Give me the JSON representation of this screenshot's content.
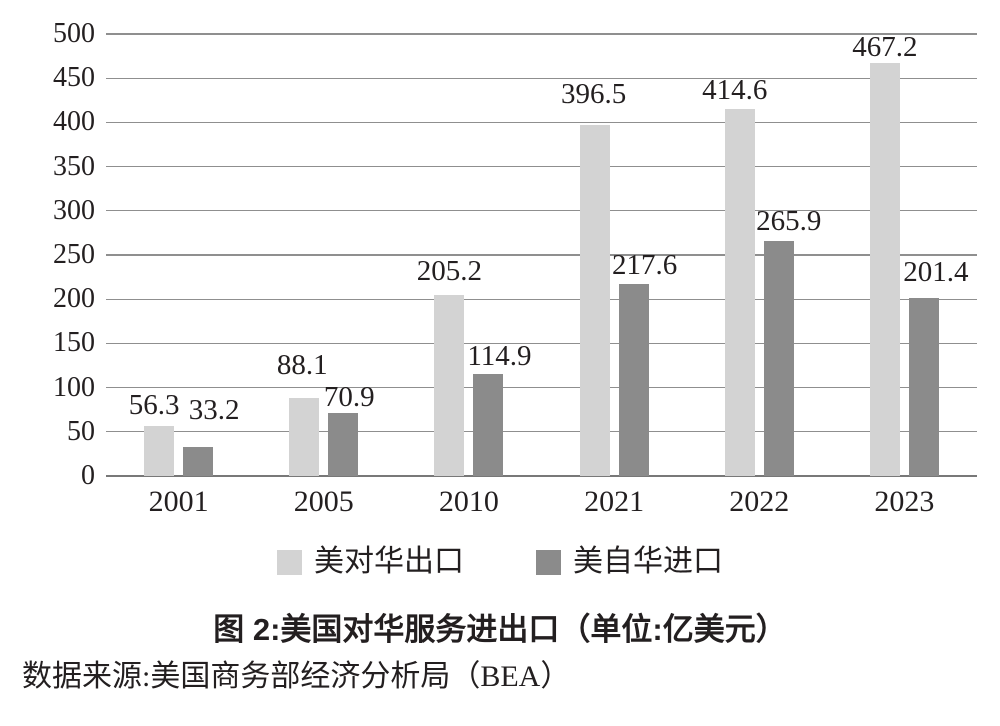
{
  "colors": {
    "background": "#ffffff",
    "export_bar": "#d3d3d3",
    "import_bar": "#8b8b8b",
    "gridline": "#8f8f8f",
    "axis_baseline": "#787878",
    "text": "#231f20"
  },
  "chart_data": {
    "type": "bar",
    "categories": [
      "2001",
      "2005",
      "2010",
      "2021",
      "2022",
      "2023"
    ],
    "series": [
      {
        "name": "美对华出口",
        "color": "#d3d3d3",
        "values": [
          56.3,
          88.1,
          205.2,
          396.5,
          414.6,
          467.2
        ]
      },
      {
        "name": "美自华进口",
        "color": "#8b8b8b",
        "values": [
          33.2,
          70.9,
          114.9,
          217.6,
          265.9,
          201.4
        ]
      }
    ],
    "ylim": [
      0,
      500
    ],
    "ytick_step": 50,
    "grid": true,
    "legend_position": "bottom",
    "xlabel": "",
    "ylabel": "",
    "title": "图 2:美国对华服务进出口（单位:亿美元）",
    "source": "数据来源:美国商务部经济分析局（BEA）",
    "label_offsets": {
      "exports": {
        "gap": [
          6,
          18,
          9,
          16,
          4,
          1
        ],
        "dx": [
          -5,
          -2,
          0,
          -1,
          -5,
          0
        ]
      },
      "imports": {
        "gap": [
          22,
          1,
          3,
          4,
          5,
          11
        ],
        "dx": [
          16,
          6,
          11,
          11,
          10,
          12
        ]
      }
    }
  }
}
